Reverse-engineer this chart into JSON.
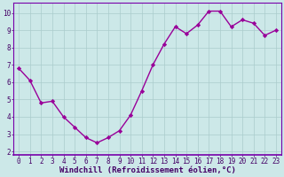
{
  "x": [
    0,
    1,
    2,
    3,
    4,
    5,
    6,
    7,
    8,
    9,
    10,
    11,
    12,
    13,
    14,
    15,
    16,
    17,
    18,
    19,
    20,
    21,
    22,
    23
  ],
  "y": [
    6.8,
    6.1,
    4.8,
    4.9,
    4.0,
    3.4,
    2.8,
    2.5,
    2.8,
    3.2,
    4.1,
    5.5,
    7.0,
    8.2,
    9.2,
    8.8,
    9.3,
    10.1,
    10.1,
    9.2,
    9.6,
    9.4,
    8.7,
    9.0
  ],
  "line_color": "#990099",
  "marker": "D",
  "markersize": 2.2,
  "linewidth": 1.0,
  "background_color": "#cce8e8",
  "plot_bg_color": "#cce8e8",
  "grid_color": "#aacccc",
  "xlabel": "Windchill (Refroidissement éolien,°C)",
  "xlabel_fontsize": 6.5,
  "xlim": [
    -0.5,
    23.5
  ],
  "ylim": [
    1.8,
    10.6
  ],
  "yticks": [
    2,
    3,
    4,
    5,
    6,
    7,
    8,
    9,
    10
  ],
  "xticks": [
    0,
    1,
    2,
    3,
    4,
    5,
    6,
    7,
    8,
    9,
    10,
    11,
    12,
    13,
    14,
    15,
    16,
    17,
    18,
    19,
    20,
    21,
    22,
    23
  ],
  "tick_fontsize": 5.5,
  "spine_color": "#7700aa",
  "tick_color": "#440066"
}
